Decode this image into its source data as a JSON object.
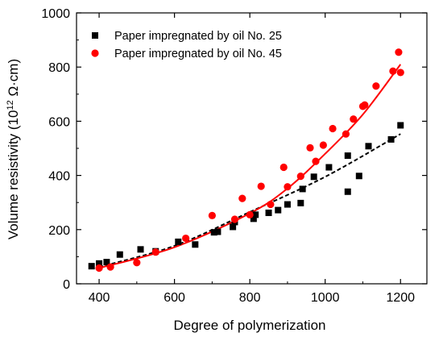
{
  "chart_data": {
    "type": "scatter",
    "xlabel": "Degree of polymerization",
    "ylabel_main": "Volume resistivity (10",
    "ylabel_sup": "12",
    "ylabel_end": " Ω·cm)",
    "xlim": [
      340,
      1270
    ],
    "ylim": [
      0,
      1000
    ],
    "xticks": [
      400,
      600,
      800,
      1000,
      1200
    ],
    "yticks": [
      0,
      200,
      400,
      600,
      800,
      1000
    ],
    "grid": false,
    "legend_position": "top-left",
    "series": [
      {
        "name": "Paper impregnated by oil No. 25",
        "marker": "square",
        "color": "#000000",
        "points": [
          [
            380,
            65
          ],
          [
            400,
            75
          ],
          [
            420,
            80
          ],
          [
            455,
            108
          ],
          [
            510,
            127
          ],
          [
            550,
            120
          ],
          [
            610,
            155
          ],
          [
            655,
            145
          ],
          [
            705,
            190
          ],
          [
            715,
            192
          ],
          [
            755,
            210
          ],
          [
            760,
            228
          ],
          [
            810,
            240
          ],
          [
            815,
            255
          ],
          [
            850,
            262
          ],
          [
            875,
            272
          ],
          [
            900,
            293
          ],
          [
            935,
            298
          ],
          [
            940,
            350
          ],
          [
            970,
            395
          ],
          [
            1010,
            430
          ],
          [
            1060,
            473
          ],
          [
            1060,
            340
          ],
          [
            1090,
            398
          ],
          [
            1115,
            508
          ],
          [
            1175,
            533
          ],
          [
            1200,
            585
          ]
        ],
        "fit_line": "dashed",
        "fit_points": [
          [
            400,
            62
          ],
          [
            600,
            140
          ],
          [
            800,
            265
          ],
          [
            1000,
            395
          ],
          [
            1200,
            553
          ]
        ]
      },
      {
        "name": "Paper impregnated by oil No. 45",
        "marker": "circle",
        "color": "#ff0000",
        "points": [
          [
            400,
            58
          ],
          [
            430,
            62
          ],
          [
            500,
            78
          ],
          [
            550,
            117
          ],
          [
            630,
            168
          ],
          [
            700,
            252
          ],
          [
            760,
            238
          ],
          [
            780,
            315
          ],
          [
            800,
            255
          ],
          [
            830,
            360
          ],
          [
            855,
            293
          ],
          [
            890,
            430
          ],
          [
            900,
            358
          ],
          [
            935,
            397
          ],
          [
            960,
            502
          ],
          [
            975,
            452
          ],
          [
            995,
            512
          ],
          [
            1020,
            573
          ],
          [
            1055,
            553
          ],
          [
            1075,
            608
          ],
          [
            1100,
            655
          ],
          [
            1105,
            660
          ],
          [
            1135,
            730
          ],
          [
            1180,
            785
          ],
          [
            1195,
            855
          ],
          [
            1200,
            780
          ]
        ],
        "fit_line": "solid",
        "fit_points": [
          [
            400,
            58
          ],
          [
            600,
            135
          ],
          [
            800,
            260
          ],
          [
            900,
            352
          ],
          [
            1000,
            480
          ],
          [
            1100,
            625
          ],
          [
            1200,
            810
          ]
        ]
      }
    ]
  }
}
